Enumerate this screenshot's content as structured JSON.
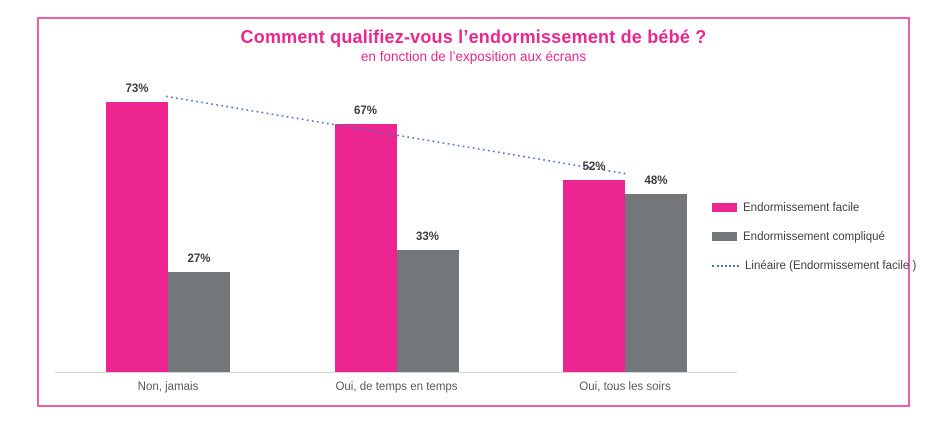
{
  "chart_data": {
    "type": "bar",
    "title": "Comment qualifiez-vous l’endormissement de bébé ?",
    "subtitle": "en fonction de l’exposition aux écrans",
    "categories": [
      "Non, jamais",
      "Oui, de temps en temps",
      "Oui, tous les soirs"
    ],
    "series": [
      {
        "name": "Endormissement facile",
        "color": "#ec2590",
        "values": [
          73,
          67,
          52
        ]
      },
      {
        "name": "Endormissement compliqué",
        "color": "#747779",
        "values": [
          27,
          33,
          48
        ]
      }
    ],
    "trendline": {
      "name": "Linéaire (Endormissement facile )",
      "based_on_series": "Endormissement facile",
      "color": "#4472c4",
      "style": "dotted"
    },
    "value_label_format": "percent",
    "ylim": [
      0,
      80
    ],
    "grid": false,
    "legend_position": "right",
    "accent_colors": {
      "frame_border": "#f05fa5",
      "title_text": "#ec268f",
      "axis_line": "#d6d6d6",
      "value_label_text": "#3d3d3d",
      "category_label_text": "#595959"
    }
  }
}
